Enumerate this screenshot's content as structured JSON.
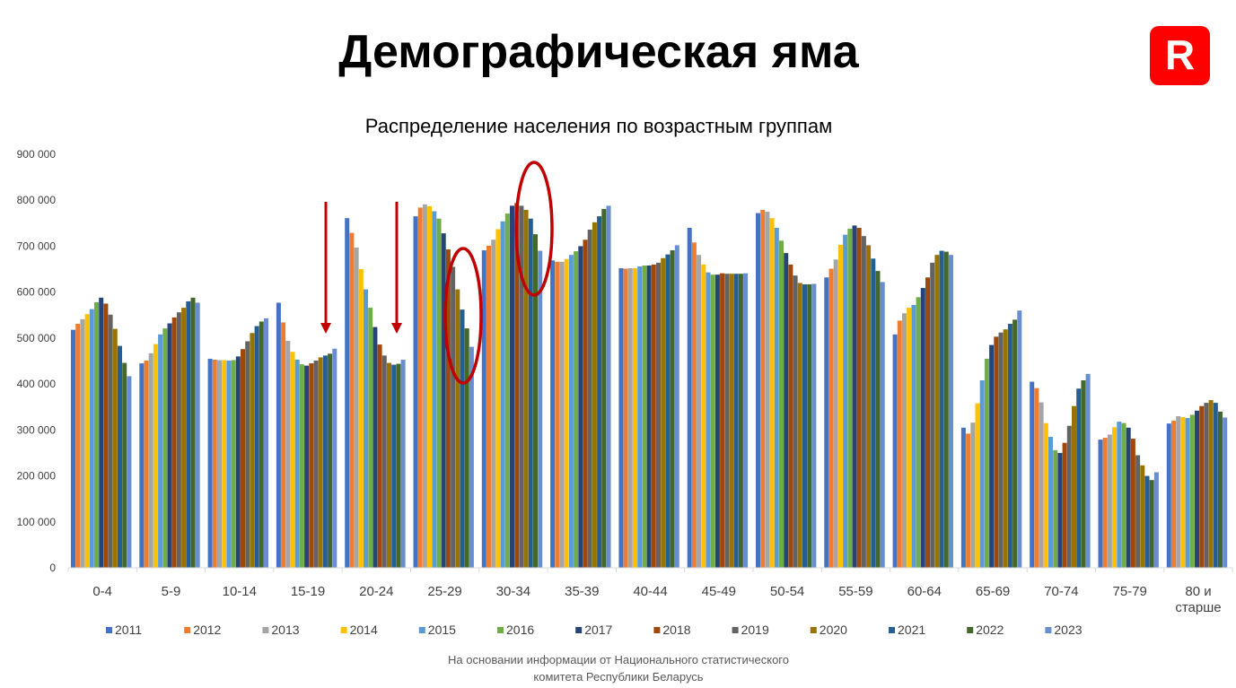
{
  "page": {
    "headline": "Демографическая яма",
    "logo_letter": "R",
    "source_line1": "На основании информации от Национального статистического",
    "source_line2": "комитета Республики Беларусь"
  },
  "colors": {
    "brand_red": "#FF0000",
    "annotation_red": "#C00000",
    "series": [
      "#4472C4",
      "#ED7D31",
      "#A5A5A5",
      "#FFC000",
      "#5B9BD5",
      "#70AD47",
      "#264478",
      "#9E480E",
      "#636363",
      "#997300",
      "#255E91",
      "#43682B",
      "#698ED0"
    ]
  },
  "chart_data": {
    "type": "bar",
    "title": "Распределение населения по возрастным группам",
    "xlabel": "",
    "ylabel": "",
    "ylim": [
      0,
      900000
    ],
    "y_ticks": [
      0,
      100000,
      200000,
      300000,
      400000,
      500000,
      600000,
      700000,
      800000,
      900000
    ],
    "y_tick_labels": [
      "0",
      "100 000",
      "200 000",
      "300 000",
      "400 000",
      "500 000",
      "600 000",
      "700 000",
      "800 000",
      "900 000"
    ],
    "grid": false,
    "legend_position": "bottom",
    "categories": [
      "0-4",
      "5-9",
      "10-14",
      "15-19",
      "20-24",
      "25-29",
      "30-34",
      "35-39",
      "40-44",
      "45-49",
      "50-54",
      "55-59",
      "60-64",
      "65-69",
      "70-74",
      "75-79",
      "80 и старше"
    ],
    "series": [
      {
        "name": "2011",
        "values": [
          518000,
          445000,
          455000,
          577000,
          761000,
          765000,
          691000,
          669000,
          652000,
          740000,
          772000,
          632000,
          508000,
          305000,
          405000,
          279000,
          314000
        ]
      },
      {
        "name": "2012",
        "values": [
          531000,
          451000,
          453000,
          534000,
          729000,
          784000,
          701000,
          666000,
          651000,
          708000,
          779000,
          651000,
          538000,
          292000,
          391000,
          283000,
          320000
        ]
      },
      {
        "name": "2013",
        "values": [
          541000,
          467000,
          452000,
          494000,
          697000,
          791000,
          714000,
          666000,
          652000,
          681000,
          775000,
          671000,
          554000,
          316000,
          360000,
          290000,
          330000
        ]
      },
      {
        "name": "2014",
        "values": [
          552000,
          487000,
          452000,
          470000,
          650000,
          787000,
          737000,
          672000,
          652000,
          660000,
          761000,
          703000,
          566000,
          358000,
          315000,
          306000,
          328000
        ]
      },
      {
        "name": "2015",
        "values": [
          563000,
          508000,
          451000,
          453000,
          606000,
          776000,
          754000,
          681000,
          656000,
          643000,
          740000,
          725000,
          572000,
          408000,
          285000,
          318000,
          326000
        ]
      },
      {
        "name": "2016",
        "values": [
          578000,
          521000,
          452000,
          443000,
          566000,
          760000,
          771000,
          689000,
          658000,
          638000,
          712000,
          738000,
          589000,
          455000,
          256000,
          315000,
          333000
        ]
      },
      {
        "name": "2017",
        "values": [
          588000,
          532000,
          460000,
          440000,
          524000,
          728000,
          788000,
          700000,
          658000,
          638000,
          685000,
          745000,
          609000,
          485000,
          250000,
          305000,
          342000
        ]
      },
      {
        "name": "2018",
        "values": [
          575000,
          545000,
          476000,
          445000,
          486000,
          693000,
          794000,
          714000,
          660000,
          641000,
          660000,
          740000,
          632000,
          503000,
          272000,
          281000,
          352000
        ]
      },
      {
        "name": "2019",
        "values": [
          551000,
          556000,
          493000,
          451000,
          462000,
          655000,
          788000,
          736000,
          664000,
          640000,
          636000,
          722000,
          664000,
          512000,
          309000,
          245000,
          359000
        ]
      },
      {
        "name": "2020",
        "values": [
          520000,
          566000,
          511000,
          458000,
          446000,
          606000,
          779000,
          752000,
          674000,
          640000,
          620000,
          702000,
          681000,
          519000,
          352000,
          223000,
          365000
        ]
      },
      {
        "name": "2021",
        "values": [
          483000,
          580000,
          526000,
          462000,
          442000,
          562000,
          760000,
          765000,
          682000,
          640000,
          617000,
          673000,
          690000,
          531000,
          390000,
          200000,
          359000
        ]
      },
      {
        "name": "2022",
        "values": [
          446000,
          588000,
          536000,
          466000,
          444000,
          521000,
          726000,
          781000,
          691000,
          640000,
          617000,
          646000,
          688000,
          540000,
          408000,
          191000,
          340000
        ]
      },
      {
        "name": "2023",
        "values": [
          417000,
          577000,
          543000,
          477000,
          453000,
          481000,
          690000,
          788000,
          702000,
          641000,
          618000,
          622000,
          681000,
          560000,
          422000,
          208000,
          327000
        ]
      }
    ]
  }
}
